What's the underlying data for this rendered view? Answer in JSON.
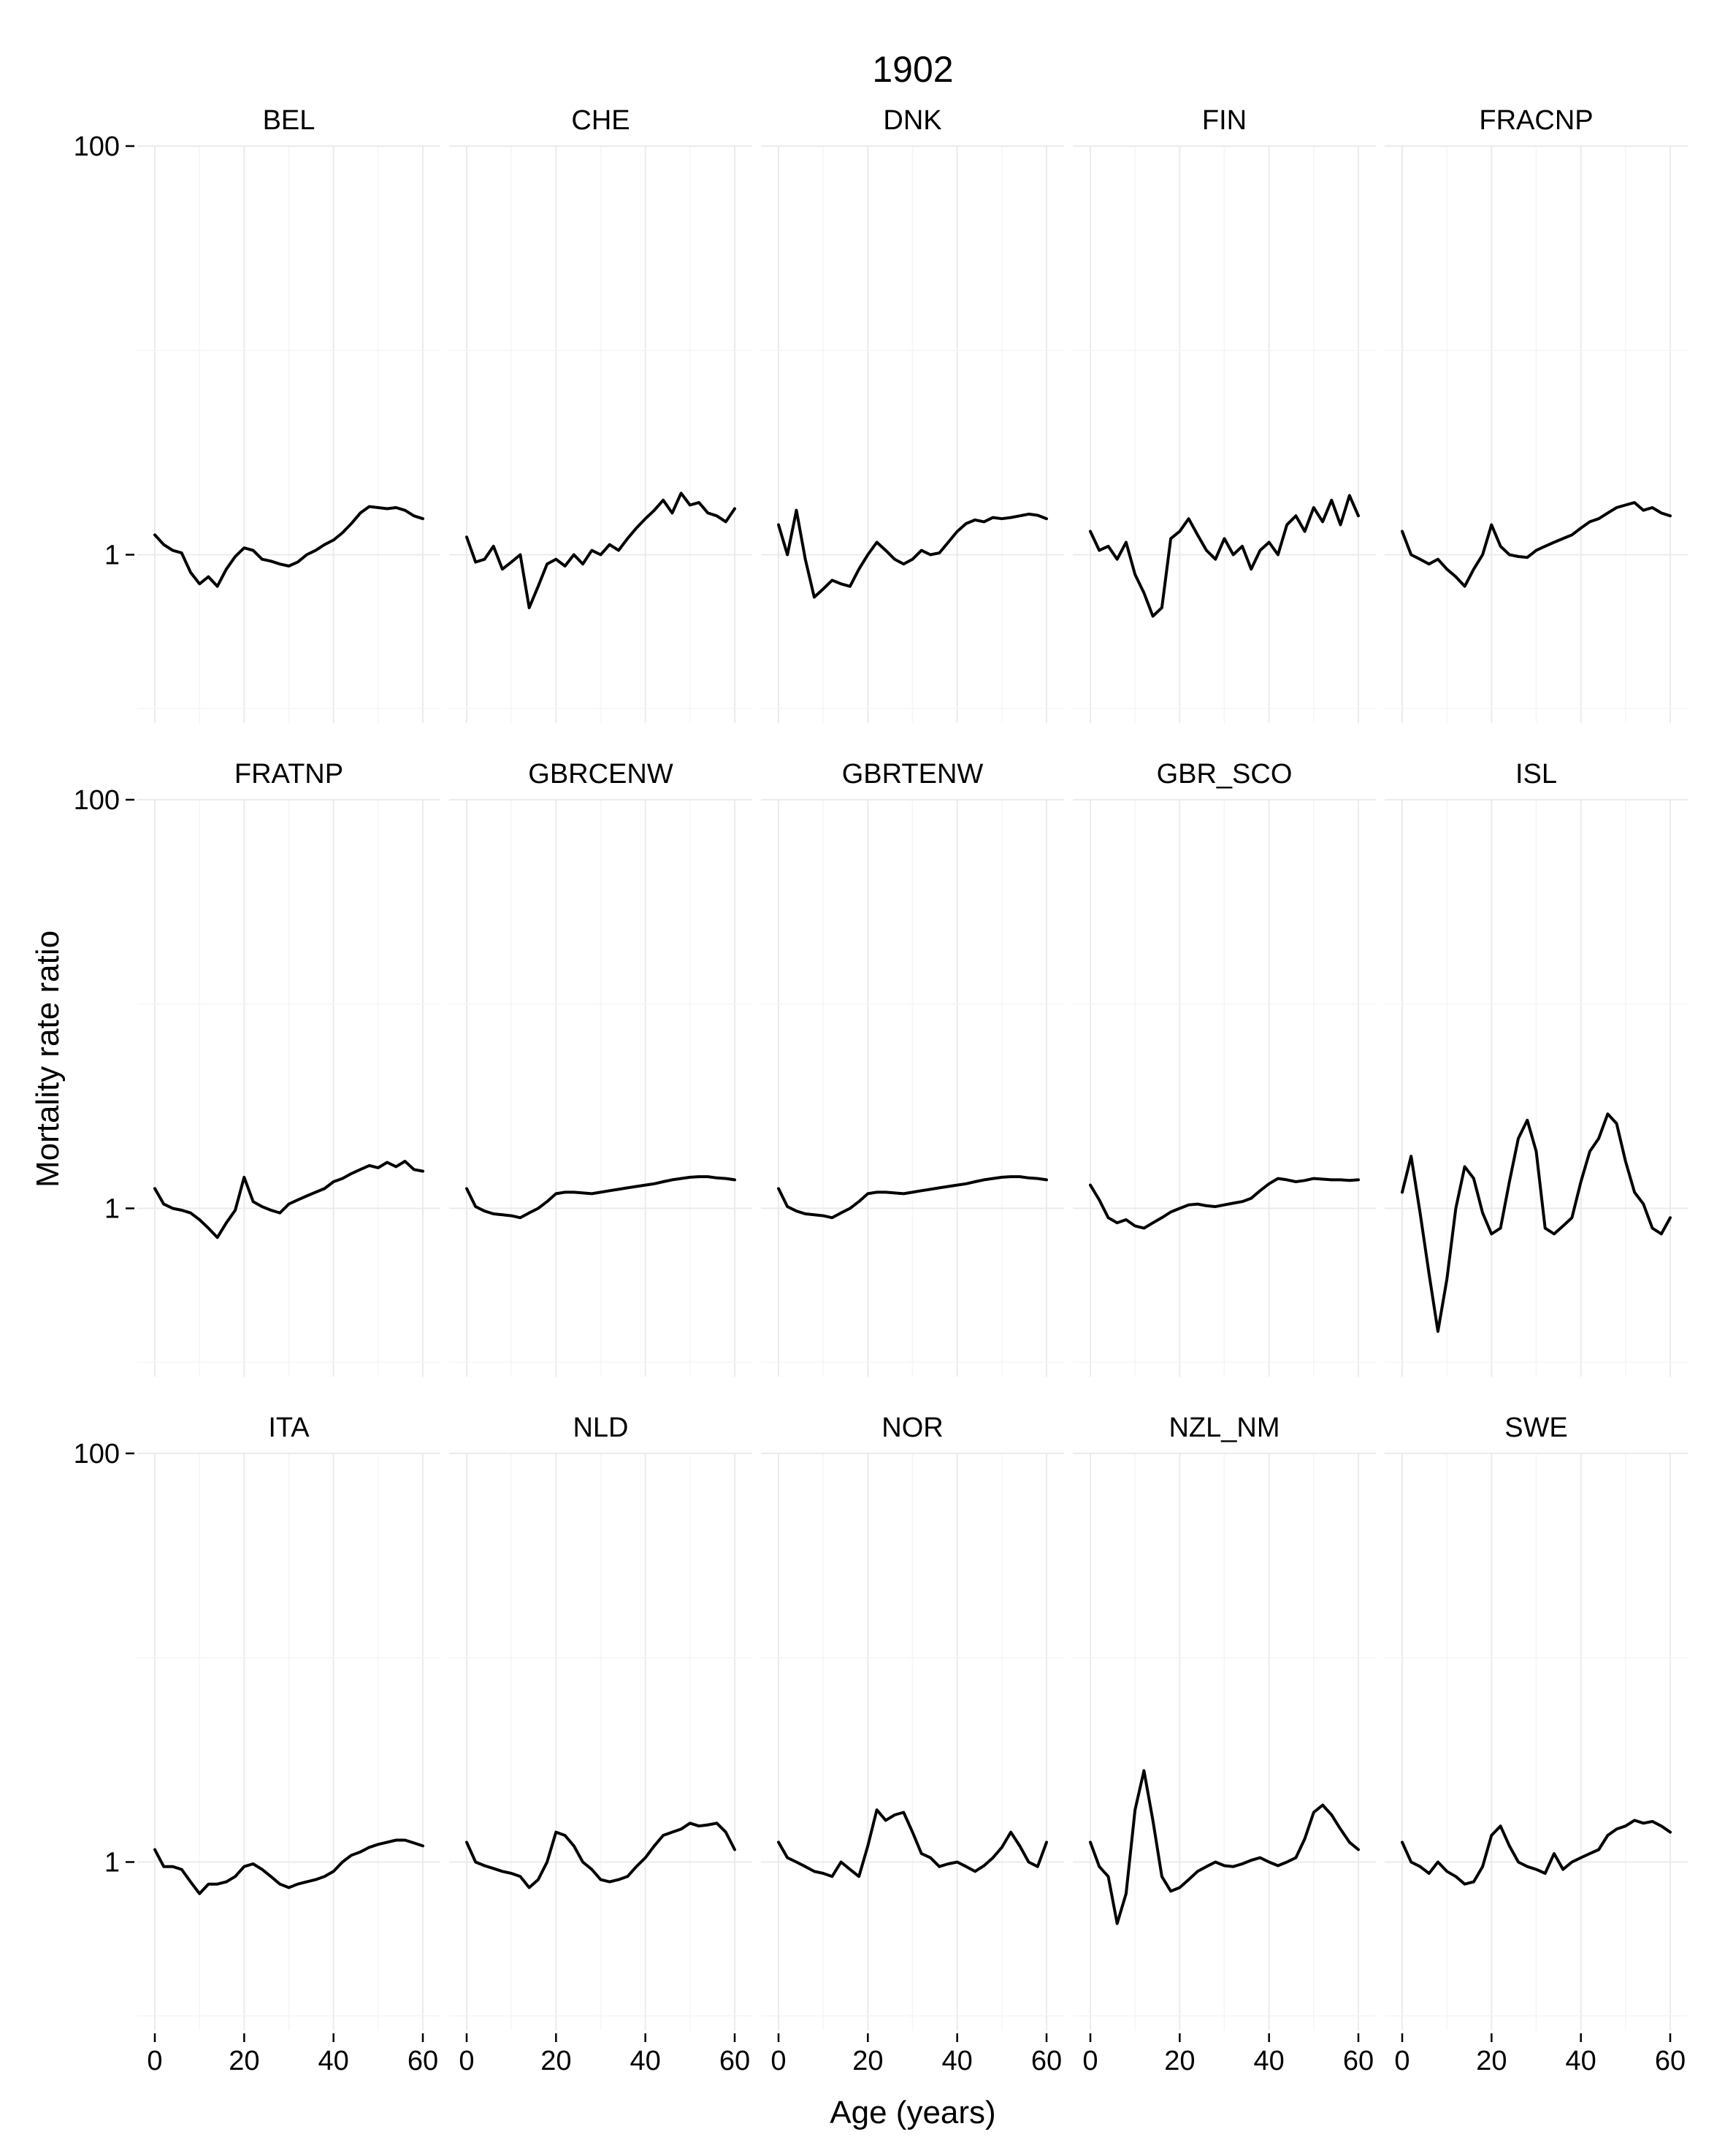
{
  "chart_data": {
    "type": "line",
    "title": "1902",
    "xlabel": "Age (years)",
    "ylabel": "Mortality rate ratio",
    "xlim": [
      0,
      60
    ],
    "ylim": [
      0.15,
      100
    ],
    "y_scale": "log",
    "x_ticks": [
      "0",
      "20",
      "40",
      "60"
    ],
    "y_ticks": [
      {
        "value": 1,
        "label": "1"
      },
      {
        "value": 100,
        "label": "100"
      }
    ],
    "grid": true,
    "layout": "facet grid 3 rows x 5 columns",
    "x": [
      0,
      2,
      4,
      6,
      8,
      10,
      12,
      14,
      16,
      18,
      20,
      22,
      24,
      26,
      28,
      30,
      32,
      34,
      36,
      38,
      40,
      42,
      44,
      46,
      48,
      50,
      52,
      54,
      56,
      58,
      60
    ],
    "series": [
      {
        "name": "BEL",
        "values": [
          1.25,
          1.12,
          1.05,
          1.02,
          0.82,
          0.72,
          0.78,
          0.7,
          0.85,
          0.98,
          1.08,
          1.05,
          0.95,
          0.93,
          0.9,
          0.88,
          0.92,
          1.0,
          1.05,
          1.12,
          1.18,
          1.28,
          1.42,
          1.6,
          1.72,
          1.7,
          1.68,
          1.7,
          1.65,
          1.55,
          1.5
        ]
      },
      {
        "name": "CHE",
        "values": [
          1.22,
          0.92,
          0.95,
          1.1,
          0.85,
          0.92,
          1.0,
          0.55,
          0.7,
          0.9,
          0.95,
          0.88,
          1.0,
          0.9,
          1.05,
          1.0,
          1.12,
          1.05,
          1.2,
          1.35,
          1.5,
          1.65,
          1.85,
          1.6,
          2.0,
          1.75,
          1.8,
          1.6,
          1.55,
          1.45,
          1.68
        ]
      },
      {
        "name": "DNK",
        "values": [
          1.4,
          1.0,
          1.65,
          0.95,
          0.62,
          0.68,
          0.75,
          0.72,
          0.7,
          0.85,
          1.0,
          1.15,
          1.05,
          0.95,
          0.9,
          0.95,
          1.05,
          1.0,
          1.02,
          1.15,
          1.3,
          1.42,
          1.48,
          1.45,
          1.52,
          1.5,
          1.52,
          1.55,
          1.58,
          1.56,
          1.5
        ]
      },
      {
        "name": "FIN",
        "values": [
          1.3,
          1.05,
          1.1,
          0.95,
          1.15,
          0.8,
          0.65,
          0.5,
          0.55,
          1.2,
          1.3,
          1.5,
          1.25,
          1.05,
          0.95,
          1.2,
          1.0,
          1.1,
          0.85,
          1.05,
          1.15,
          1.0,
          1.4,
          1.55,
          1.3,
          1.7,
          1.45,
          1.85,
          1.4,
          1.95,
          1.55
        ]
      },
      {
        "name": "FRACNP",
        "values": [
          1.3,
          1.0,
          0.95,
          0.9,
          0.95,
          0.85,
          0.78,
          0.7,
          0.85,
          1.0,
          1.4,
          1.1,
          1.0,
          0.98,
          0.97,
          1.05,
          1.1,
          1.15,
          1.2,
          1.25,
          1.35,
          1.45,
          1.5,
          1.6,
          1.7,
          1.75,
          1.8,
          1.65,
          1.7,
          1.6,
          1.55
        ]
      },
      {
        "name": "FRATNP",
        "values": [
          1.25,
          1.05,
          1.0,
          0.98,
          0.95,
          0.88,
          0.8,
          0.72,
          0.85,
          0.98,
          1.42,
          1.08,
          1.02,
          0.98,
          0.95,
          1.05,
          1.1,
          1.15,
          1.2,
          1.25,
          1.35,
          1.4,
          1.48,
          1.55,
          1.62,
          1.58,
          1.68,
          1.6,
          1.7,
          1.55,
          1.52
        ]
      },
      {
        "name": "GBRCENW",
        "values": [
          1.25,
          1.02,
          0.97,
          0.94,
          0.93,
          0.92,
          0.9,
          0.95,
          1.0,
          1.08,
          1.18,
          1.2,
          1.2,
          1.19,
          1.18,
          1.2,
          1.22,
          1.24,
          1.26,
          1.28,
          1.3,
          1.32,
          1.35,
          1.38,
          1.4,
          1.42,
          1.43,
          1.43,
          1.41,
          1.4,
          1.38
        ]
      },
      {
        "name": "GBRTENW",
        "values": [
          1.25,
          1.02,
          0.97,
          0.94,
          0.93,
          0.92,
          0.9,
          0.95,
          1.0,
          1.08,
          1.18,
          1.2,
          1.2,
          1.19,
          1.18,
          1.2,
          1.22,
          1.24,
          1.26,
          1.28,
          1.3,
          1.32,
          1.35,
          1.38,
          1.4,
          1.42,
          1.43,
          1.43,
          1.41,
          1.4,
          1.38
        ]
      },
      {
        "name": "GBR_SCO",
        "values": [
          1.3,
          1.1,
          0.9,
          0.85,
          0.88,
          0.82,
          0.8,
          0.85,
          0.9,
          0.96,
          1.0,
          1.04,
          1.05,
          1.03,
          1.02,
          1.04,
          1.06,
          1.08,
          1.12,
          1.22,
          1.32,
          1.4,
          1.38,
          1.35,
          1.37,
          1.4,
          1.39,
          1.38,
          1.38,
          1.37,
          1.38
        ]
      },
      {
        "name": "ISL",
        "values": [
          1.2,
          1.8,
          0.95,
          0.48,
          0.25,
          0.45,
          1.0,
          1.6,
          1.4,
          0.95,
          0.75,
          0.8,
          1.35,
          2.2,
          2.7,
          1.9,
          0.8,
          0.75,
          0.82,
          0.9,
          1.35,
          1.9,
          2.2,
          2.9,
          2.6,
          1.7,
          1.2,
          1.05,
          0.8,
          0.75,
          0.9
        ]
      },
      {
        "name": "ITA",
        "values": [
          1.15,
          0.95,
          0.95,
          0.92,
          0.8,
          0.7,
          0.78,
          0.78,
          0.8,
          0.85,
          0.95,
          0.98,
          0.92,
          0.85,
          0.78,
          0.75,
          0.78,
          0.8,
          0.82,
          0.85,
          0.9,
          1.0,
          1.08,
          1.12,
          1.18,
          1.22,
          1.25,
          1.28,
          1.28,
          1.24,
          1.2
        ]
      },
      {
        "name": "NLD",
        "values": [
          1.25,
          1.0,
          0.96,
          0.93,
          0.9,
          0.88,
          0.85,
          0.75,
          0.82,
          1.0,
          1.4,
          1.35,
          1.2,
          1.0,
          0.92,
          0.82,
          0.8,
          0.82,
          0.85,
          0.95,
          1.05,
          1.2,
          1.35,
          1.4,
          1.45,
          1.55,
          1.5,
          1.52,
          1.55,
          1.4,
          1.15
        ]
      },
      {
        "name": "NOR",
        "values": [
          1.25,
          1.05,
          1.0,
          0.95,
          0.9,
          0.88,
          0.85,
          1.0,
          0.92,
          0.85,
          1.2,
          1.8,
          1.6,
          1.7,
          1.75,
          1.4,
          1.1,
          1.05,
          0.95,
          0.98,
          1.0,
          0.95,
          0.9,
          0.96,
          1.05,
          1.18,
          1.4,
          1.2,
          1.0,
          0.95,
          1.25
        ]
      },
      {
        "name": "NZL_NM",
        "values": [
          1.25,
          0.95,
          0.85,
          0.5,
          0.7,
          1.8,
          2.8,
          1.6,
          0.85,
          0.72,
          0.75,
          0.82,
          0.9,
          0.95,
          1.0,
          0.96,
          0.95,
          0.98,
          1.02,
          1.05,
          1.0,
          0.96,
          1.0,
          1.05,
          1.3,
          1.75,
          1.9,
          1.7,
          1.45,
          1.25,
          1.15
        ]
      },
      {
        "name": "SWE",
        "values": [
          1.25,
          1.0,
          0.95,
          0.88,
          1.0,
          0.9,
          0.85,
          0.78,
          0.8,
          0.95,
          1.35,
          1.5,
          1.2,
          1.0,
          0.95,
          0.92,
          0.88,
          1.1,
          0.92,
          1.0,
          1.05,
          1.1,
          1.15,
          1.35,
          1.45,
          1.5,
          1.6,
          1.55,
          1.58,
          1.5,
          1.4
        ]
      }
    ]
  }
}
